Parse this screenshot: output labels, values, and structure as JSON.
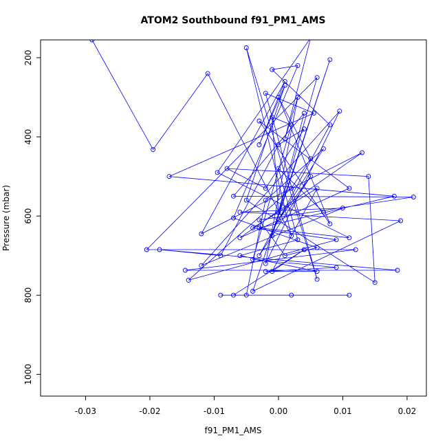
{
  "chart_data": {
    "type": "line",
    "title": "ATOM2 Southbound f91_PM1_AMS",
    "xlabel": "f91_PM1_AMS",
    "ylabel": "Pressure (mbar)",
    "xlim": [
      -0.037,
      0.023
    ],
    "ylim": [
      1055,
      155
    ],
    "y_reversed": true,
    "x_ticks": [
      -0.03,
      -0.02,
      -0.01,
      0.0,
      0.01,
      0.02
    ],
    "x_tick_labels": [
      "-0.03",
      "-0.02",
      "-0.01",
      "0.00",
      "0.01",
      "0.02"
    ],
    "y_ticks": [
      200,
      400,
      600,
      800,
      1000
    ],
    "y_tick_labels": [
      "200",
      "400",
      "600",
      "800",
      "1000"
    ],
    "grid": false,
    "legend": "none",
    "line_color": "#0000ff",
    "marker": "open-circle",
    "series": [
      {
        "points": [
          [
            -0.029,
            155
          ],
          [
            -0.0195,
            432
          ],
          [
            -0.011,
            240
          ],
          [
            0.002,
            650
          ],
          [
            -0.005,
            175
          ],
          [
            0.006,
            760
          ],
          [
            -0.002,
            290
          ],
          [
            0.0055,
            340
          ],
          [
            -0.017,
            500
          ],
          [
            0.018,
            550
          ],
          [
            -0.003,
            630
          ],
          [
            0.011,
            655
          ],
          [
            -0.0095,
            490
          ],
          [
            0.005,
            150
          ],
          [
            0.001,
            405
          ],
          [
            0.003,
            300
          ],
          [
            -0.002,
            720
          ],
          [
            0.0095,
            335
          ],
          [
            -0.012,
            725
          ],
          [
            0.01,
            580
          ],
          [
            -0.006,
            590
          ],
          [
            0.019,
            612
          ],
          [
            -0.004,
            790
          ],
          [
            0.008,
            205
          ],
          [
            -0.001,
            650
          ],
          [
            0.006,
            250
          ],
          [
            -0.0205,
            685
          ],
          [
            0.012,
            685
          ],
          [
            -0.0145,
            737
          ],
          [
            0.0185,
            737
          ],
          [
            -0.0185,
            685
          ],
          [
            -0.009,
            700
          ],
          [
            0.0,
            420
          ],
          [
            0.004,
            380
          ],
          [
            -0.002,
            530
          ],
          [
            -0.008,
            480
          ],
          [
            0.014,
            500
          ],
          [
            0.015,
            768
          ],
          [
            -0.005,
            560
          ],
          [
            0.001,
            270
          ],
          [
            -0.003,
            420
          ],
          [
            0.001,
            260
          ],
          [
            -0.012,
            645
          ],
          [
            0.013,
            440
          ],
          [
            -0.006,
            655
          ],
          [
            0.011,
            530
          ],
          [
            -0.003,
            360
          ],
          [
            0.008,
            620
          ],
          [
            0.0,
            300
          ],
          [
            0.005,
            455
          ],
          [
            0.002,
            530
          ],
          [
            -0.014,
            762
          ],
          [
            0.009,
            660
          ],
          [
            -0.004,
            630
          ],
          [
            0.006,
            530
          ],
          [
            -0.001,
            740
          ],
          [
            0.004,
            685
          ],
          [
            -0.007,
            800
          ],
          [
            0.011,
            800
          ],
          [
            -0.009,
            800
          ],
          [
            0.002,
            800
          ],
          [
            -0.005,
            800
          ],
          [
            -0.002,
            560
          ],
          [
            0.007,
            430
          ],
          [
            0.0,
            610
          ],
          [
            0.005,
            500
          ],
          [
            -0.003,
            700
          ],
          [
            0.008,
            370
          ],
          [
            -0.001,
            230
          ],
          [
            0.003,
            220
          ],
          [
            -0.007,
            605
          ],
          [
            0.006,
            680
          ],
          [
            0.001,
            700
          ],
          [
            -0.003,
            610
          ],
          [
            0.021,
            552
          ],
          [
            -0.007,
            550
          ],
          [
            0.004,
            340
          ],
          [
            0.0,
            590
          ],
          [
            -0.001,
            350
          ],
          [
            0.002,
            370
          ],
          [
            -0.004,
            710
          ],
          [
            0.009,
            730
          ],
          [
            -0.002,
            740
          ],
          [
            0.006,
            740
          ],
          [
            -0.006,
            700
          ],
          [
            0.003,
            660
          ],
          [
            0.0,
            480
          ],
          [
            0.007,
            590
          ]
        ]
      }
    ]
  }
}
